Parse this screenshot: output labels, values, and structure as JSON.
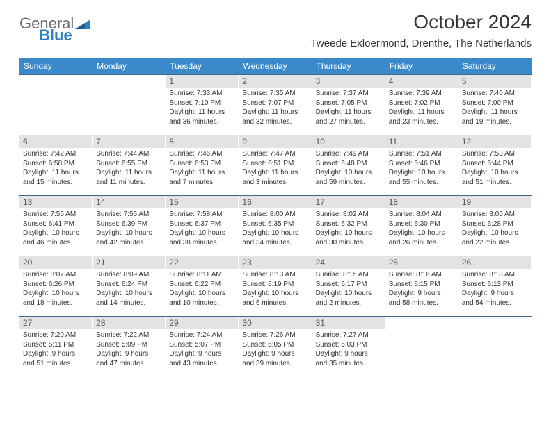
{
  "brand": {
    "line1": "General",
    "line2": "Blue",
    "flag_color": "#2f7fc2"
  },
  "title": "October 2024",
  "location": "Tweede Exloermond, Drenthe, The Netherlands",
  "header_bg": "#3a8acb",
  "day_num_bg": "#e3e3e3",
  "row_border": "#3a6a8a",
  "weekdays": [
    "Sunday",
    "Monday",
    "Tuesday",
    "Wednesday",
    "Thursday",
    "Friday",
    "Saturday"
  ],
  "weeks": [
    [
      {
        "n": "",
        "blank": true
      },
      {
        "n": "",
        "blank": true
      },
      {
        "n": "1",
        "sr": "Sunrise: 7:33 AM",
        "ss": "Sunset: 7:10 PM",
        "dl": "Daylight: 11 hours and 36 minutes."
      },
      {
        "n": "2",
        "sr": "Sunrise: 7:35 AM",
        "ss": "Sunset: 7:07 PM",
        "dl": "Daylight: 11 hours and 32 minutes."
      },
      {
        "n": "3",
        "sr": "Sunrise: 7:37 AM",
        "ss": "Sunset: 7:05 PM",
        "dl": "Daylight: 11 hours and 27 minutes."
      },
      {
        "n": "4",
        "sr": "Sunrise: 7:39 AM",
        "ss": "Sunset: 7:02 PM",
        "dl": "Daylight: 11 hours and 23 minutes."
      },
      {
        "n": "5",
        "sr": "Sunrise: 7:40 AM",
        "ss": "Sunset: 7:00 PM",
        "dl": "Daylight: 11 hours and 19 minutes."
      }
    ],
    [
      {
        "n": "6",
        "sr": "Sunrise: 7:42 AM",
        "ss": "Sunset: 6:58 PM",
        "dl": "Daylight: 11 hours and 15 minutes."
      },
      {
        "n": "7",
        "sr": "Sunrise: 7:44 AM",
        "ss": "Sunset: 6:55 PM",
        "dl": "Daylight: 11 hours and 11 minutes."
      },
      {
        "n": "8",
        "sr": "Sunrise: 7:46 AM",
        "ss": "Sunset: 6:53 PM",
        "dl": "Daylight: 11 hours and 7 minutes."
      },
      {
        "n": "9",
        "sr": "Sunrise: 7:47 AM",
        "ss": "Sunset: 6:51 PM",
        "dl": "Daylight: 11 hours and 3 minutes."
      },
      {
        "n": "10",
        "sr": "Sunrise: 7:49 AM",
        "ss": "Sunset: 6:48 PM",
        "dl": "Daylight: 10 hours and 59 minutes."
      },
      {
        "n": "11",
        "sr": "Sunrise: 7:51 AM",
        "ss": "Sunset: 6:46 PM",
        "dl": "Daylight: 10 hours and 55 minutes."
      },
      {
        "n": "12",
        "sr": "Sunrise: 7:53 AM",
        "ss": "Sunset: 6:44 PM",
        "dl": "Daylight: 10 hours and 51 minutes."
      }
    ],
    [
      {
        "n": "13",
        "sr": "Sunrise: 7:55 AM",
        "ss": "Sunset: 6:41 PM",
        "dl": "Daylight: 10 hours and 46 minutes."
      },
      {
        "n": "14",
        "sr": "Sunrise: 7:56 AM",
        "ss": "Sunset: 6:39 PM",
        "dl": "Daylight: 10 hours and 42 minutes."
      },
      {
        "n": "15",
        "sr": "Sunrise: 7:58 AM",
        "ss": "Sunset: 6:37 PM",
        "dl": "Daylight: 10 hours and 38 minutes."
      },
      {
        "n": "16",
        "sr": "Sunrise: 8:00 AM",
        "ss": "Sunset: 6:35 PM",
        "dl": "Daylight: 10 hours and 34 minutes."
      },
      {
        "n": "17",
        "sr": "Sunrise: 8:02 AM",
        "ss": "Sunset: 6:32 PM",
        "dl": "Daylight: 10 hours and 30 minutes."
      },
      {
        "n": "18",
        "sr": "Sunrise: 8:04 AM",
        "ss": "Sunset: 6:30 PM",
        "dl": "Daylight: 10 hours and 26 minutes."
      },
      {
        "n": "19",
        "sr": "Sunrise: 8:05 AM",
        "ss": "Sunset: 6:28 PM",
        "dl": "Daylight: 10 hours and 22 minutes."
      }
    ],
    [
      {
        "n": "20",
        "sr": "Sunrise: 8:07 AM",
        "ss": "Sunset: 6:26 PM",
        "dl": "Daylight: 10 hours and 18 minutes."
      },
      {
        "n": "21",
        "sr": "Sunrise: 8:09 AM",
        "ss": "Sunset: 6:24 PM",
        "dl": "Daylight: 10 hours and 14 minutes."
      },
      {
        "n": "22",
        "sr": "Sunrise: 8:11 AM",
        "ss": "Sunset: 6:22 PM",
        "dl": "Daylight: 10 hours and 10 minutes."
      },
      {
        "n": "23",
        "sr": "Sunrise: 8:13 AM",
        "ss": "Sunset: 6:19 PM",
        "dl": "Daylight: 10 hours and 6 minutes."
      },
      {
        "n": "24",
        "sr": "Sunrise: 8:15 AM",
        "ss": "Sunset: 6:17 PM",
        "dl": "Daylight: 10 hours and 2 minutes."
      },
      {
        "n": "25",
        "sr": "Sunrise: 8:16 AM",
        "ss": "Sunset: 6:15 PM",
        "dl": "Daylight: 9 hours and 58 minutes."
      },
      {
        "n": "26",
        "sr": "Sunrise: 8:18 AM",
        "ss": "Sunset: 6:13 PM",
        "dl": "Daylight: 9 hours and 54 minutes."
      }
    ],
    [
      {
        "n": "27",
        "sr": "Sunrise: 7:20 AM",
        "ss": "Sunset: 5:11 PM",
        "dl": "Daylight: 9 hours and 51 minutes."
      },
      {
        "n": "28",
        "sr": "Sunrise: 7:22 AM",
        "ss": "Sunset: 5:09 PM",
        "dl": "Daylight: 9 hours and 47 minutes."
      },
      {
        "n": "29",
        "sr": "Sunrise: 7:24 AM",
        "ss": "Sunset: 5:07 PM",
        "dl": "Daylight: 9 hours and 43 minutes."
      },
      {
        "n": "30",
        "sr": "Sunrise: 7:26 AM",
        "ss": "Sunset: 5:05 PM",
        "dl": "Daylight: 9 hours and 39 minutes."
      },
      {
        "n": "31",
        "sr": "Sunrise: 7:27 AM",
        "ss": "Sunset: 5:03 PM",
        "dl": "Daylight: 9 hours and 35 minutes."
      },
      {
        "n": "",
        "blank": true
      },
      {
        "n": "",
        "blank": true
      }
    ]
  ]
}
